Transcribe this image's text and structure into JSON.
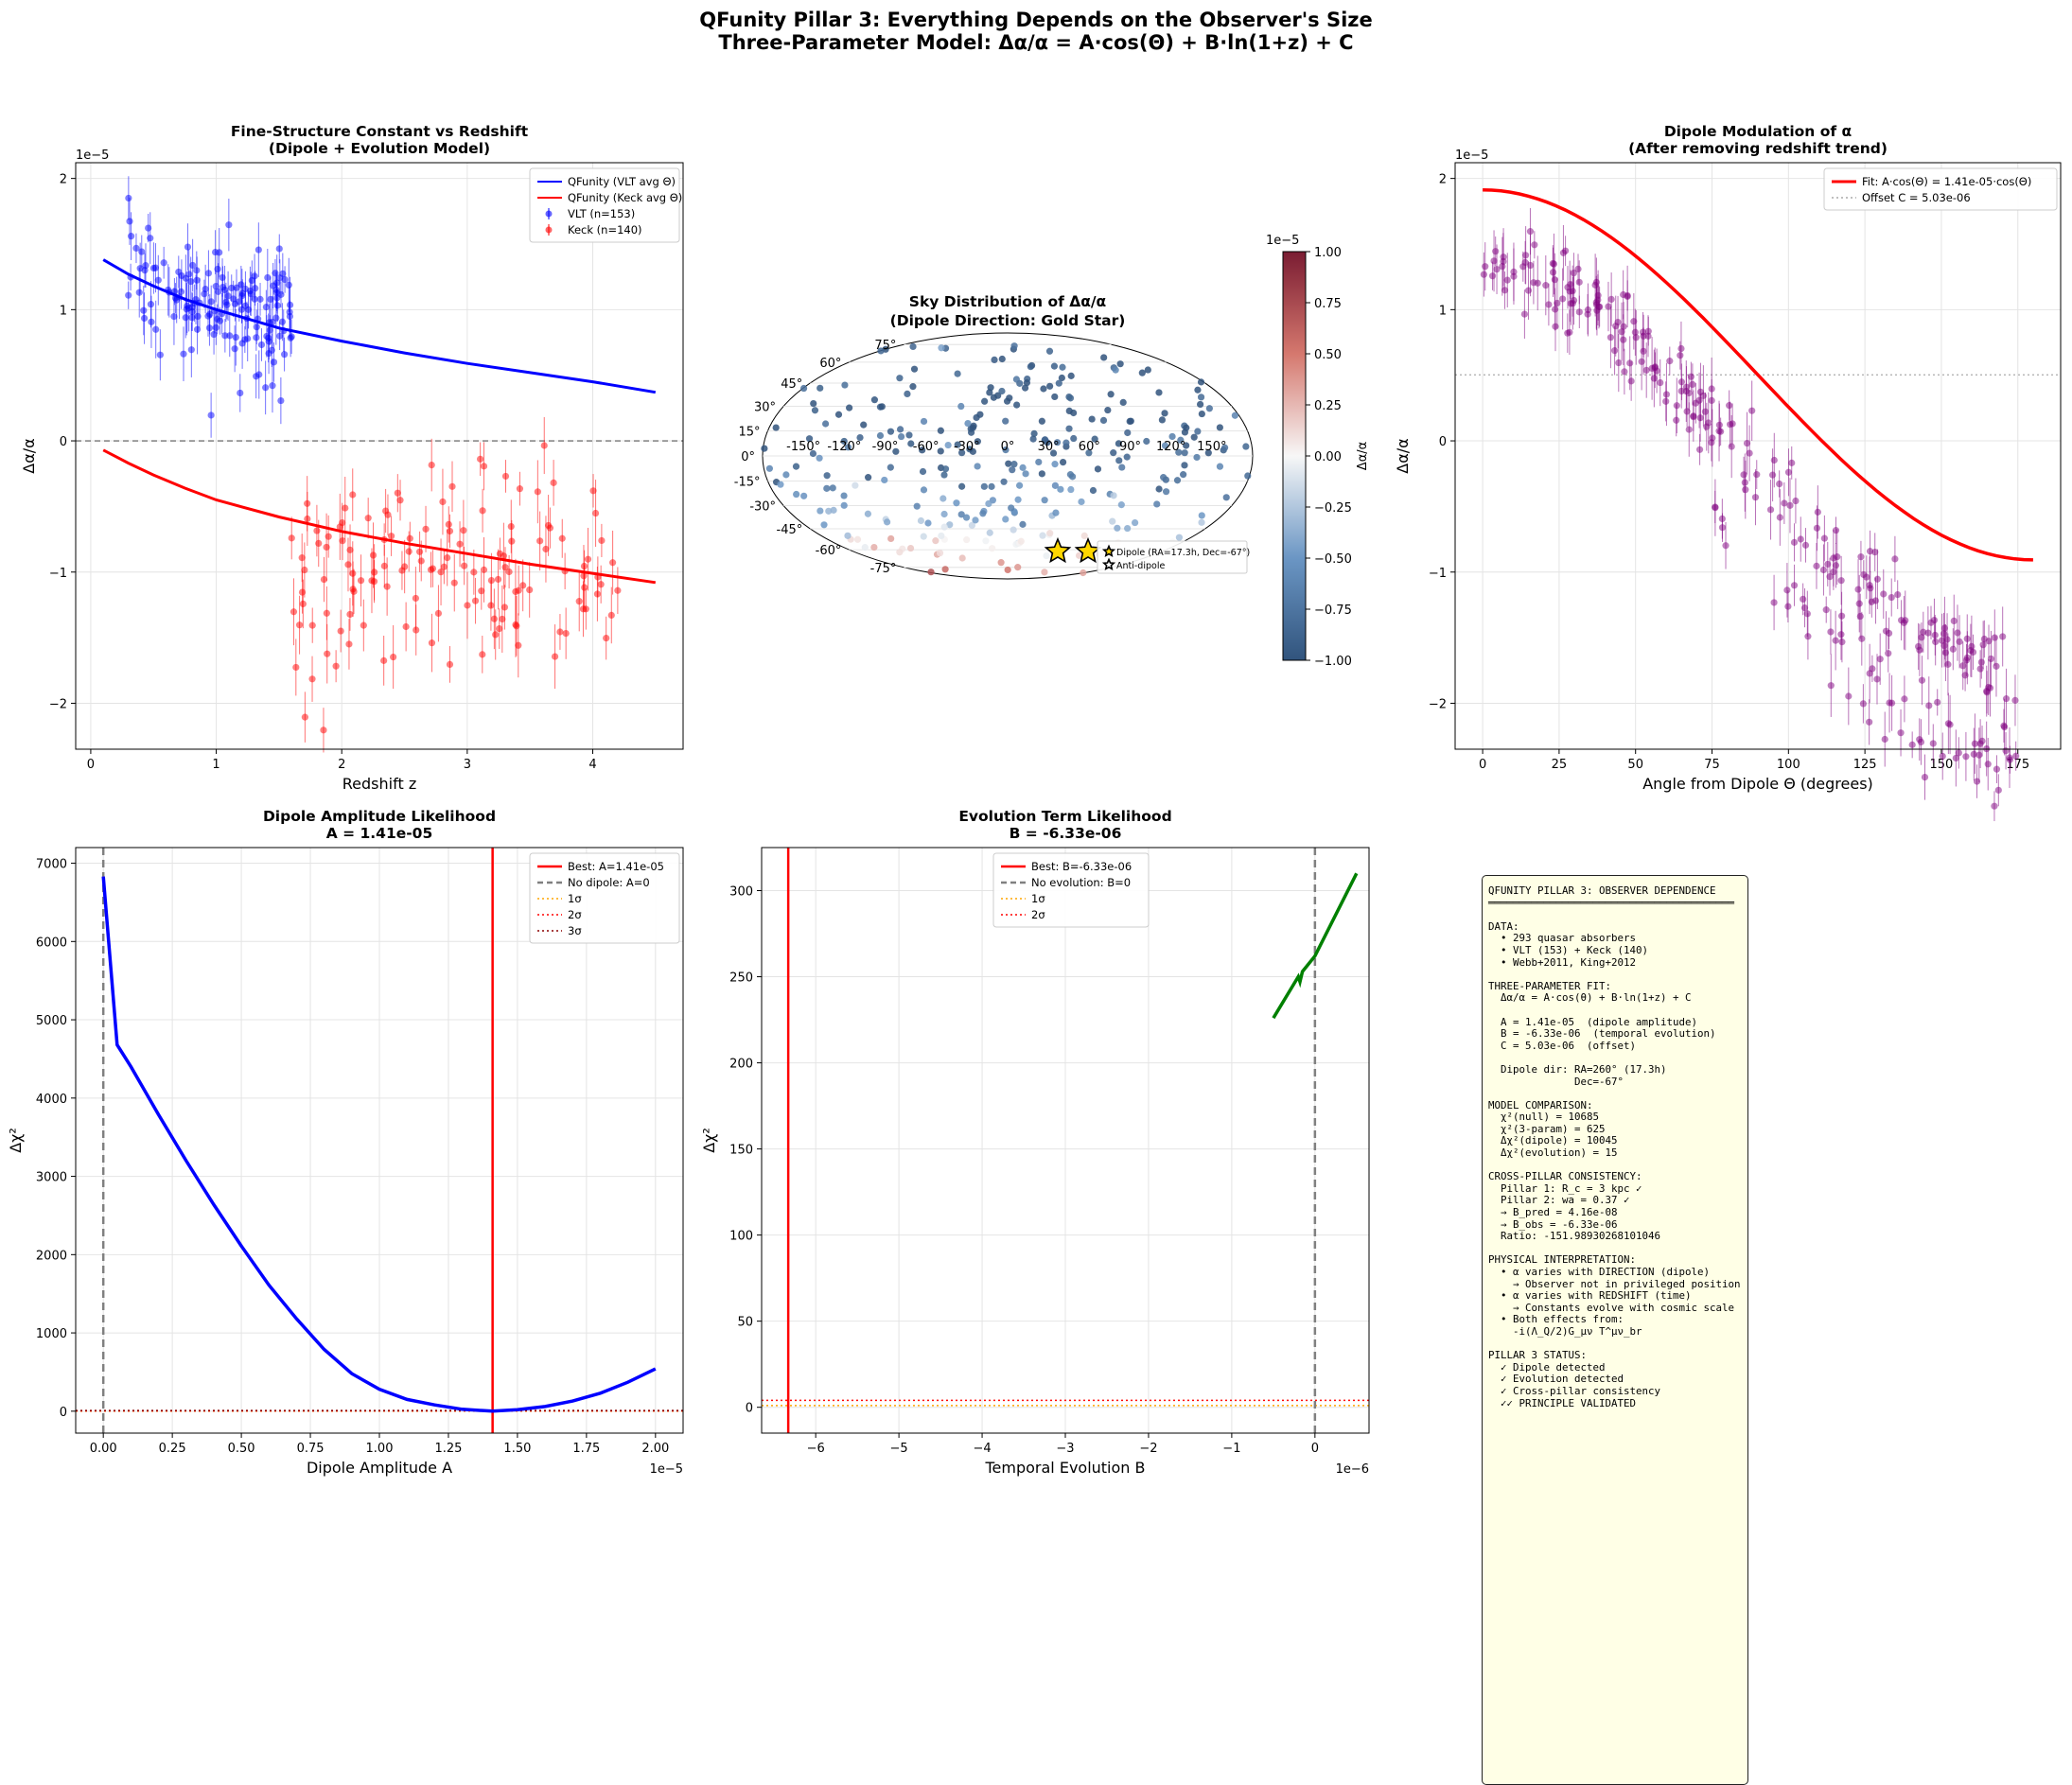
{
  "figure": {
    "title_line1": "QFunity Pillar 3: Everything Depends on the Observer's Size",
    "title_line2": "Three-Parameter Model: Δα/α = A·cos(Θ) + B·ln(1+z) + C"
  },
  "colors": {
    "vlt": "#0000ff",
    "keck": "#ff0000",
    "dipole_points": "#800080",
    "fit": "#ff0000",
    "evolution_line": "#008000",
    "gold": "#ffd700"
  },
  "chart_data": [
    {
      "type": "scatter",
      "title": "Fine-Structure Constant vs Redshift\n(Dipole + Evolution Model)",
      "xlabel": "Redshift z",
      "ylabel": "Δα/α",
      "y_offset_label": "1e−5",
      "xlim": [
        -0.12,
        4.72
      ],
      "ylim": [
        -2.35,
        2.12
      ],
      "xticks": [
        0,
        1,
        2,
        3,
        4
      ],
      "yticks": [
        -2,
        -1,
        0,
        1,
        2
      ],
      "grid": true,
      "legend_position": "top-right",
      "reference_line_y": 0,
      "series": [
        {
          "name": "QFunity (VLT avg Θ)",
          "kind": "line",
          "color": "#0000ff",
          "x": [
            0.1,
            0.3,
            0.5,
            0.75,
            1.0,
            1.5,
            2.0,
            2.5,
            3.0,
            3.5,
            4.0,
            4.5
          ],
          "y": [
            1.38,
            1.27,
            1.18,
            1.08,
            1.0,
            0.86,
            0.76,
            0.67,
            0.59,
            0.52,
            0.45,
            0.37
          ]
        },
        {
          "name": "QFunity (Keck avg Θ)",
          "kind": "line",
          "color": "#ff0000",
          "x": [
            0.1,
            0.3,
            0.5,
            0.75,
            1.0,
            1.5,
            2.0,
            2.5,
            3.0,
            3.5,
            4.0,
            4.5
          ],
          "y": [
            -0.07,
            -0.17,
            -0.26,
            -0.36,
            -0.45,
            -0.58,
            -0.69,
            -0.78,
            -0.86,
            -0.94,
            -1.01,
            -1.08
          ]
        },
        {
          "name": "VLT (n=153)",
          "kind": "points",
          "color": "#0000ff",
          "n": 153,
          "x_range": [
            0.3,
            1.6
          ],
          "y_center": 1.0,
          "y_spread": 0.42
        },
        {
          "name": "Keck (n=140)",
          "kind": "points",
          "color": "#ff0000",
          "n": 140,
          "x_range": [
            1.6,
            4.2
          ],
          "y_center": -0.95,
          "y_spread": 0.45
        }
      ]
    },
    {
      "type": "scatter",
      "title": "Sky Distribution of Δα/α\n(Dipole Direction: Gold Star)",
      "projection": "mollweide",
      "lon_ticks": [
        "-150°",
        "-120°",
        "-90°",
        "-60°",
        "-30°",
        "0°",
        "30°",
        "60°",
        "90°",
        "120°",
        "150°"
      ],
      "lat_ticks": [
        "75°",
        "60°",
        "45°",
        "30°",
        "15°",
        "0°",
        "-15°",
        "-30°",
        "-45°",
        "-60°",
        "-75°"
      ],
      "colorbar": {
        "label": "Δα/α",
        "offset_label": "1e−5",
        "ticks": [
          "1.00",
          "0.75",
          "0.50",
          "0.25",
          "0.00",
          "−0.25",
          "−0.50",
          "−0.75",
          "−1.00"
        ]
      },
      "legend": [
        "Dipole (RA=17.3h, Dec=-67°)",
        "Anti-dipole"
      ],
      "dipole": {
        "ra_deg": 260,
        "dec_deg": -67
      },
      "n_points": 293
    },
    {
      "type": "scatter",
      "title": "Dipole Modulation of α\n(After removing redshift trend)",
      "xlabel": "Angle from Dipole Θ (degrees)",
      "ylabel": "Δα/α",
      "y_offset_label": "1e−5",
      "xlim": [
        -9,
        189
      ],
      "ylim": [
        -2.35,
        2.12
      ],
      "xticks": [
        0,
        25,
        50,
        75,
        100,
        125,
        150,
        175
      ],
      "yticks": [
        -2,
        -1,
        0,
        1,
        2
      ],
      "grid": true,
      "legend_position": "top-right",
      "fit": {
        "name": "Fit: A·cos(Θ) = 1.41e-05·cos(Θ)",
        "amplitude": 1.41,
        "offset": 0.503,
        "color": "#ff0000"
      },
      "offset_line": {
        "name": "Offset C = 5.03e-06",
        "y": 0.503
      },
      "points": {
        "n": 293,
        "color": "#800080",
        "x_range": [
          0,
          176
        ]
      }
    },
    {
      "type": "line",
      "title": "Dipole Amplitude Likelihood\nA = 1.41e-05",
      "xlabel": "Dipole Amplitude A",
      "ylabel": "Δχ²",
      "x_offset_label": "1e−5",
      "xlim": [
        -0.1,
        2.1
      ],
      "ylim": [
        -280,
        7200
      ],
      "xticks": [
        0.0,
        0.25,
        0.5,
        0.75,
        1.0,
        1.25,
        1.5,
        1.75,
        2.0
      ],
      "yticks": [
        0,
        1000,
        2000,
        3000,
        4000,
        5000,
        6000,
        7000
      ],
      "grid": true,
      "legend_position": "top-right",
      "series": [
        {
          "name": "Δχ²",
          "color": "#0000ff",
          "x": [
            0.0,
            0.05,
            0.1,
            0.2,
            0.3,
            0.4,
            0.5,
            0.6,
            0.7,
            0.8,
            0.9,
            1.0,
            1.1,
            1.2,
            1.3,
            1.41,
            1.5,
            1.6,
            1.7,
            1.8,
            1.9,
            2.0
          ],
          "y": [
            6830,
            4680,
            4400,
            3790,
            3200,
            2640,
            2110,
            1610,
            1180,
            790,
            480,
            280,
            150,
            80,
            25,
            0,
            18,
            60,
            130,
            230,
            370,
            540
          ]
        }
      ],
      "vlines": [
        {
          "name": "Best: A=1.41e-05",
          "x": 1.41,
          "color": "#ff0000",
          "style": "solid"
        },
        {
          "name": "No dipole: A=0",
          "x": 0,
          "color": "#808080",
          "style": "dashed"
        }
      ],
      "hlines": [
        {
          "name": "1σ",
          "y": 1,
          "color": "#ffa500"
        },
        {
          "name": "2σ",
          "y": 4,
          "color": "#ff0000"
        },
        {
          "name": "3σ",
          "y": 9,
          "color": "#8b0000"
        }
      ]
    },
    {
      "type": "line",
      "title": "Evolution Term Likelihood\nB = -6.33e-06",
      "xlabel": "Temporal Evolution B",
      "ylabel": "Δχ²",
      "x_offset_label": "1e−6",
      "xlim": [
        -6.65,
        0.65
      ],
      "ylim": [
        -15,
        325
      ],
      "xticks": [
        -6,
        -5,
        -4,
        -3,
        -2,
        -1,
        0
      ],
      "yticks": [
        0,
        50,
        100,
        150,
        200,
        250,
        300
      ],
      "grid": true,
      "legend_position": "top-center",
      "series": [
        {
          "name": "Δχ²",
          "color": "#008000",
          "x": [
            -0.5,
            -0.2,
            -0.18,
            -0.15,
            0.0,
            0.5
          ],
          "y": [
            226,
            250,
            247,
            253,
            262,
            310
          ]
        }
      ],
      "vlines": [
        {
          "name": "Best: B=-6.33e-06",
          "x": -6.33,
          "color": "#ff0000",
          "style": "solid"
        },
        {
          "name": "No evolution: B=0",
          "x": 0,
          "color": "#808080",
          "style": "dashed"
        }
      ],
      "hlines": [
        {
          "name": "1σ",
          "y": 1,
          "color": "#ffa500"
        },
        {
          "name": "2σ",
          "y": 4,
          "color": "#ff0000"
        }
      ]
    }
  ],
  "summary": {
    "lines": [
      "QFUNITY PILLAR 3: OBSERVER DEPENDENCE",
      "════════════════════════════════════════",
      "",
      "DATA:",
      "  • 293 quasar absorbers",
      "  • VLT (153) + Keck (140)",
      "  • Webb+2011, King+2012",
      "",
      "THREE-PARAMETER FIT:",
      "  Δα/α = A·cos(θ) + B·ln(1+z) + C",
      "",
      "  A = 1.41e-05  (dipole amplitude)",
      "  B = -6.33e-06  (temporal evolution)",
      "  C = 5.03e-06  (offset)",
      "",
      "  Dipole dir: RA=260° (17.3h)",
      "              Dec=-67°",
      "",
      "MODEL COMPARISON:",
      "  χ²(null) = 10685",
      "  χ²(3-param) = 625",
      "  Δχ²(dipole) = 10045",
      "  Δχ²(evolution) = 15",
      "",
      "CROSS-PILLAR CONSISTENCY:",
      "  Pillar 1: R_c = 3 kpc ✓",
      "  Pillar 2: wa = 0.37 ✓",
      "  → B_pred = 4.16e-08",
      "  → B_obs = -6.33e-06",
      "  Ratio: -151.98930268101046",
      "",
      "PHYSICAL INTERPRETATION:",
      "  • α varies with DIRECTION (dipole)",
      "    → Observer not in privileged position",
      "  • α varies with REDSHIFT (time)",
      "    → Constants evolve with cosmic scale",
      "  • Both effects from:",
      "    -i(Λ_Q/2)G_μν T^μν_br",
      "",
      "PILLAR 3 STATUS:",
      "  ✓ Dipole detected",
      "  ✓ Evolution detected",
      "  ✓ Cross-pillar consistency",
      "  ✓✓ PRINCIPLE VALIDATED"
    ]
  }
}
